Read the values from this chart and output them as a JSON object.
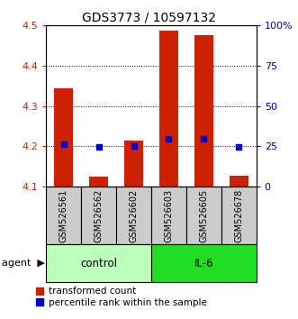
{
  "title": "GDS3773 / 10597132",
  "samples": [
    "GSM526561",
    "GSM526562",
    "GSM526602",
    "GSM526603",
    "GSM526605",
    "GSM526678"
  ],
  "bar_bottoms": [
    4.1,
    4.1,
    4.1,
    4.1,
    4.1,
    4.1
  ],
  "bar_tops": [
    4.345,
    4.125,
    4.215,
    4.487,
    4.477,
    4.127
  ],
  "percentile_values": [
    4.205,
    4.198,
    4.202,
    4.218,
    4.218,
    4.198
  ],
  "ylim": [
    4.1,
    4.5
  ],
  "yticks_left": [
    4.1,
    4.2,
    4.3,
    4.4,
    4.5
  ],
  "yticks_right": [
    0,
    25,
    50,
    75,
    100
  ],
  "bar_color": "#cc2200",
  "percentile_color": "#0000cc",
  "control_color": "#bbffbb",
  "il6_color": "#22dd22",
  "sample_box_color": "#cccccc",
  "grid_color": "#000000",
  "left_tick_color": "#cc2200",
  "right_tick_color": "#0000cc",
  "title_fontsize": 10,
  "tick_fontsize": 8,
  "sample_fontsize": 7,
  "legend_fontsize": 7.5,
  "agent_fontsize": 8.5
}
